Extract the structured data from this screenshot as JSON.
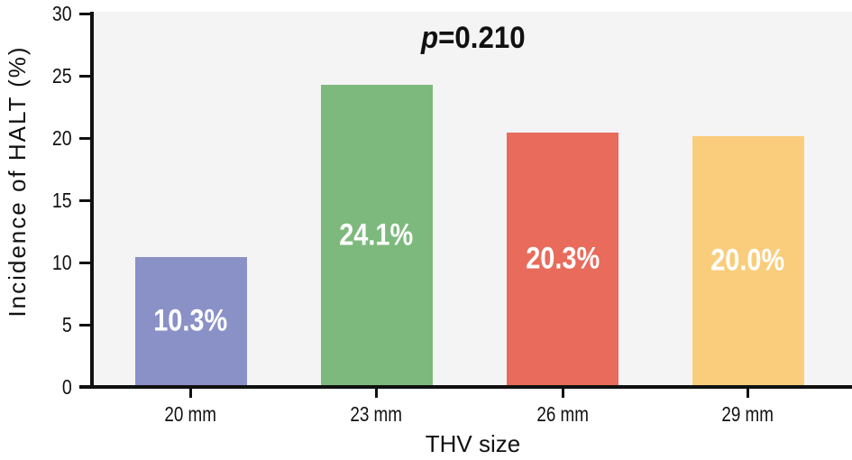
{
  "chart_data": {
    "type": "bar",
    "title": "",
    "annotation": {
      "prefix_italic": "p",
      "text": "=0.210",
      "full": "p=0.210"
    },
    "xlabel": "THV size",
    "ylabel": "Incidence of HALT (%)",
    "categories": [
      "20 mm",
      "23 mm",
      "26 mm",
      "29 mm"
    ],
    "values": [
      10.3,
      24.1,
      20.3,
      20.0
    ],
    "bar_labels": [
      "10.3%",
      "24.1%",
      "20.3%",
      "20.0%"
    ],
    "bar_colors": [
      "#8A91C7",
      "#7DB97D",
      "#E96B5C",
      "#FACD7C"
    ],
    "ylim": [
      0,
      30
    ],
    "yticks": [
      0,
      5,
      10,
      15,
      20,
      25,
      30
    ],
    "grid": false,
    "legend": "none",
    "plot_background": "#F5F4F5",
    "axis_color": "#111111",
    "bar_label_color": "#FFFFFF"
  }
}
